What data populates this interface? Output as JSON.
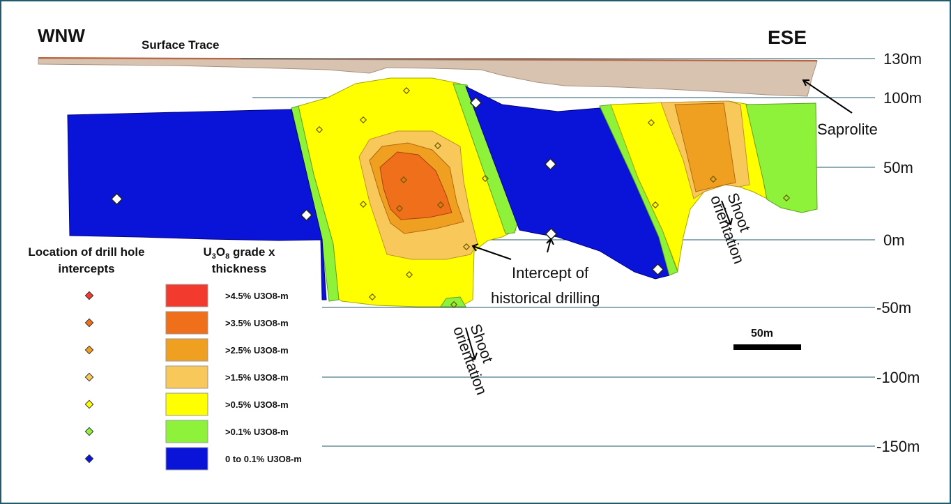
{
  "labels": {
    "left_direction": "WNW",
    "right_direction": "ESE",
    "surface_trace": "Surface Trace",
    "saprolite": "Saprolite",
    "historical_line1": "Intercept of",
    "historical_line2": "historical drilling",
    "shoot": "Shoot",
    "orientation": "orientation",
    "scale_bar": "50m"
  },
  "elevations": [
    "130m",
    "100m",
    "50m",
    "0m",
    "-50m",
    "-100m",
    "-150m"
  ],
  "legend": {
    "intercepts_title_line1": "Location of drill hole",
    "intercepts_title_line2": "intercepts",
    "grade_title_prefix": "U",
    "grade_title_sub1": "3",
    "grade_title_mid": "O",
    "grade_title_sub2": "8",
    "grade_title_suffix": " grade x",
    "grade_title_line2": "thickness",
    "items": [
      {
        "label": ">4.5% U3O8-m",
        "color": "#f23a2e"
      },
      {
        "label": ">3.5% U3O8-m",
        "color": "#f06f1a"
      },
      {
        "label": ">2.5% U3O8-m",
        "color": "#f0a020"
      },
      {
        "label": ">1.5% U3O8-m",
        "color": "#f8c85a"
      },
      {
        "label": ">0.5% U3O8-m",
        "color": "#ffff00"
      },
      {
        "label": ">0.1% U3O8-m",
        "color": "#8ef23a"
      },
      {
        "label": "0 to 0.1% U3O8-m",
        "color": "#0a14d8"
      }
    ]
  },
  "colors": {
    "frame": "#1f5a6e",
    "saprolite": "#d8c3b0",
    "surface_trace": "#c0613a",
    "grid_line": "#1f5a6e"
  }
}
